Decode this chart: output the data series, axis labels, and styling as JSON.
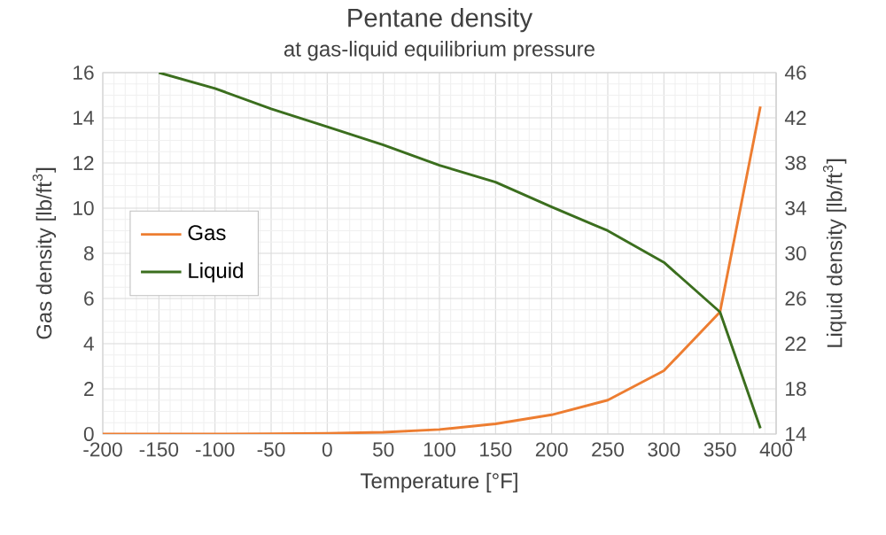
{
  "chart_data": {
    "type": "line",
    "title": "Pentane density",
    "subtitle": "at gas-liquid equilibrium pressure",
    "xlabel": "Temperature [°F]",
    "ylabel": "Gas density [lb/ft$^{3}$]",
    "y2label": "Liquid density [lb/ft$^{3}$]",
    "series": [
      {
        "name": "Gas",
        "color": "#ed7d31",
        "x": [
          -200,
          -150,
          -100,
          -50,
          0,
          50,
          100,
          150,
          200,
          250,
          300,
          350,
          386
        ],
        "values": [
          0,
          0,
          0,
          0.01,
          0.03,
          0.08,
          0.2,
          0.45,
          0.85,
          1.5,
          2.8,
          5.4,
          14.5
        ]
      },
      {
        "name": "Liquid",
        "color": "#3b6e1e",
        "axis": "y2",
        "x": [
          -150,
          -100,
          -50,
          0,
          50,
          100,
          150,
          200,
          250,
          300,
          350,
          386
        ],
        "values": [
          46,
          44.6,
          42.8,
          41.2,
          39.6,
          37.8,
          36.3,
          34.1,
          32.0,
          29.2,
          24.8,
          14.5
        ]
      }
    ],
    "xlim": [
      -200,
      400
    ],
    "xticks": [
      -200,
      -150,
      -100,
      -50,
      0,
      50,
      100,
      150,
      200,
      250,
      300,
      350,
      400
    ],
    "ylim": [
      0,
      16
    ],
    "yticks": [
      0,
      2,
      4,
      6,
      8,
      10,
      12,
      14,
      16
    ],
    "y2lim": [
      14,
      46
    ],
    "y2ticks": [
      14,
      18,
      22,
      26,
      30,
      34,
      38,
      42,
      46
    ],
    "grid": true,
    "legend": "left"
  }
}
